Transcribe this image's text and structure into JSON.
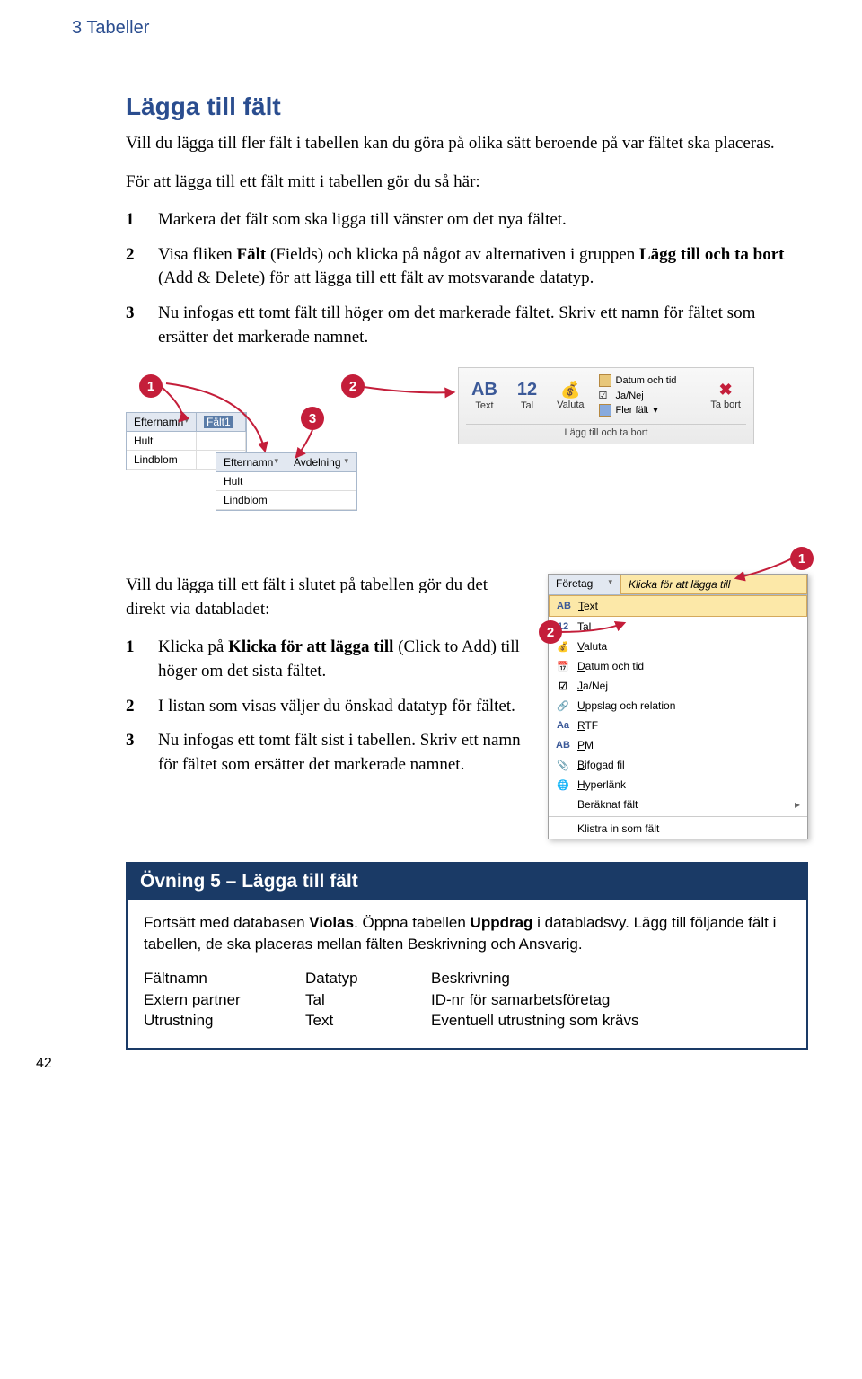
{
  "chapter": "3  Tabeller",
  "page_number": "42",
  "section_title": "Lägga till fält",
  "intro": "Vill du lägga till fler fält i tabellen kan du göra på olika sätt beroende på var fältet ska placeras.",
  "intro2": "För att lägga till ett fält mitt i tabellen gör du så här:",
  "steps1": {
    "s1": "Markera det fält som ska ligga till vänster om det nya fältet.",
    "s2a": "Visa fliken ",
    "s2b": "Fält",
    "s2c": " (Fields) och klicka på något av alternativen i gruppen ",
    "s2d": "Lägg till och ta bort",
    "s2e": " (Add & Delete) för att lägga till ett fält av motsvarande datatyp.",
    "s3": "Nu infogas ett tomt fält till höger om det markerade fältet. Skriv ett namn för fältet som ersätter det markerade namnet."
  },
  "fig1": {
    "grid1": {
      "h1": "Efternamn",
      "h2": "Fält1",
      "r1": "Hult",
      "r2": "Lindblom"
    },
    "grid2": {
      "h1": "Efternamn",
      "h2": "Avdelning",
      "r1": "Hult",
      "r2": "Lindblom"
    },
    "ribbon": {
      "text_label": "Text",
      "tal_label": "Tal",
      "valuta_label": "Valuta",
      "datum": "Datum och tid",
      "janej": "Ja/Nej",
      "fler": "Fler fält",
      "tabort": "Ta bort",
      "group": "Lägg till och ta bort"
    }
  },
  "intro3": "Vill du lägga till ett fält i slutet på tabellen gör du det direkt via databladet:",
  "steps2": {
    "s1a": "Klicka på ",
    "s1b": "Klicka för att lägga till",
    "s1c": " (Click to Add) till höger om det sista fältet.",
    "s2": "I listan som visas väljer du önskad datatyp för fältet.",
    "s3": "Nu infogas ett tomt fält sist i tabellen. Skriv ett namn för fältet som ersätter det markerade namnet."
  },
  "dropdown": {
    "h1": "Företag",
    "h2": "Klicka för att lägga till",
    "items": [
      {
        "ico": "AB",
        "label": "Text",
        "u": "T"
      },
      {
        "ico": "12",
        "label": "Tal",
        "u": "T"
      },
      {
        "ico": "💰",
        "label": "Valuta",
        "u": "V"
      },
      {
        "ico": "📅",
        "label": "Datum och tid",
        "u": "D"
      },
      {
        "ico": "☑",
        "label": "Ja/Nej",
        "u": "J"
      },
      {
        "ico": "🔗",
        "label": "Uppslag och relation",
        "u": "U"
      },
      {
        "ico": "Aa",
        "label": "RTF",
        "u": "R"
      },
      {
        "ico": "AB",
        "label": "PM",
        "u": "P"
      },
      {
        "ico": "📎",
        "label": "Bifogad fil",
        "u": "B"
      },
      {
        "ico": "🌐",
        "label": "Hyperlänk",
        "u": "H"
      },
      {
        "ico": "",
        "label": "Beräknat fält",
        "u": "",
        "arrow": true
      },
      {
        "ico": "",
        "label": "Klistra in som fält",
        "u": "",
        "sep": true
      }
    ]
  },
  "exercise": {
    "title": "Övning 5 – Lägga till fält",
    "body1a": "Fortsätt med databasen ",
    "body1b": "Violas",
    "body1c": ". Öppna tabellen ",
    "body1d": "Uppdrag",
    "body1e": " i databladsvy. Lägg till följande fält i tabellen, de ska placeras mellan fälten Beskrivning och Ansvarig.",
    "table": {
      "hdr": {
        "c1": "Fältnamn",
        "c2": "Datatyp",
        "c3": "Beskrivning"
      },
      "r1": {
        "c1": "Extern partner",
        "c2": "Tal",
        "c3": "ID-nr för samarbetsföretag"
      },
      "r2": {
        "c1": "Utrustning",
        "c2": "Text",
        "c3": "Eventuell utrustning som krävs"
      }
    }
  }
}
